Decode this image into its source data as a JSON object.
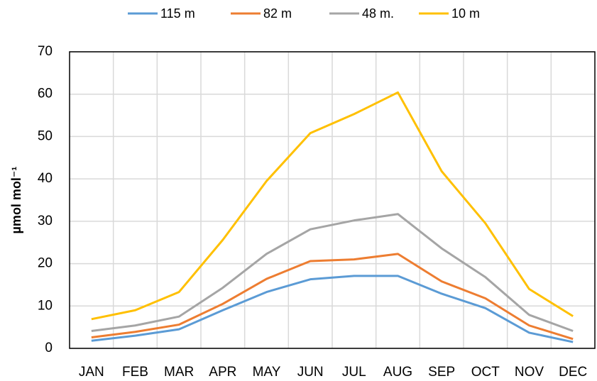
{
  "chart_data": {
    "type": "line",
    "y_label": "µmol mol⁻¹",
    "categories": [
      "JAN",
      "FEB",
      "MAR",
      "APR",
      "MAY",
      "JUN",
      "JUL",
      "AUG",
      "SEP",
      "OCT",
      "NOV",
      "DEC"
    ],
    "series": [
      {
        "name": "115 m",
        "color": "#5b9bd5",
        "values": [
          1.8,
          3.0,
          4.5,
          9.0,
          13.3,
          16.3,
          17.1,
          17.1,
          12.9,
          9.5,
          3.7,
          1.5
        ]
      },
      {
        "name": "82 m",
        "color": "#ed7d31",
        "values": [
          2.6,
          3.9,
          5.6,
          10.5,
          16.4,
          20.6,
          21.0,
          22.3,
          15.8,
          11.8,
          5.4,
          2.2
        ]
      },
      {
        "name": "48 m.",
        "color": "#a5a5a5",
        "values": [
          4.1,
          5.4,
          7.5,
          14.3,
          22.3,
          28.1,
          30.2,
          31.7,
          23.6,
          16.8,
          7.9,
          4.1
        ]
      },
      {
        "name": "10 m",
        "color": "#ffc000",
        "values": [
          6.9,
          9.0,
          13.3,
          25.6,
          39.5,
          50.8,
          55.3,
          60.4,
          41.8,
          29.5,
          14.0,
          7.6
        ]
      }
    ],
    "ylim": [
      0,
      70
    ],
    "yticks": [
      0,
      10,
      20,
      30,
      40,
      50,
      60,
      70
    ],
    "grid": true,
    "legend": "top"
  }
}
